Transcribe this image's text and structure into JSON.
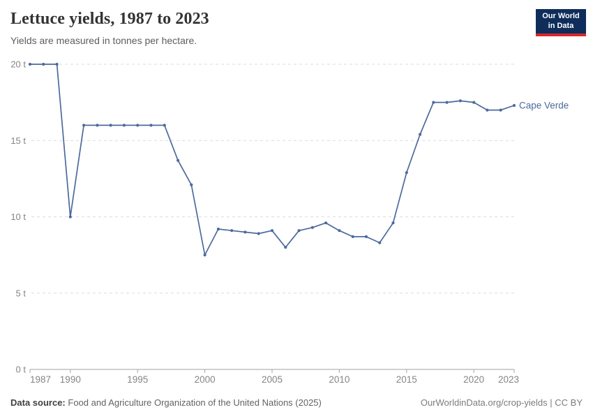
{
  "header": {
    "title": "Lettuce yields, 1987 to 2023",
    "subtitle": "Yields are measured in tonnes per hectare.",
    "logo": {
      "line1": "Our World",
      "line2": "in Data"
    }
  },
  "chart_data": {
    "type": "line",
    "title": "Lettuce yields, 1987 to 2023",
    "ylabel": "tonnes per hectare",
    "unit": "t",
    "xlim": [
      1987,
      2023
    ],
    "ylim": [
      0,
      20
    ],
    "yticks": [
      0,
      5,
      10,
      15,
      20
    ],
    "xticks": [
      1987,
      1990,
      1995,
      2000,
      2005,
      2010,
      2015,
      2020,
      2023
    ],
    "grid": "horizontal-dashed",
    "legend_position": "end-of-line-label",
    "x": [
      1987,
      1988,
      1989,
      1990,
      1991,
      1992,
      1993,
      1994,
      1995,
      1996,
      1997,
      1998,
      1999,
      2000,
      2001,
      2002,
      2003,
      2004,
      2005,
      2006,
      2007,
      2008,
      2009,
      2010,
      2011,
      2012,
      2013,
      2014,
      2015,
      2016,
      2017,
      2018,
      2019,
      2020,
      2021,
      2022,
      2023
    ],
    "series": [
      {
        "name": "Cape Verde",
        "color": "#4c6a9c",
        "values": [
          20,
          20,
          20,
          10,
          16,
          16,
          16,
          16,
          16,
          16,
          16,
          13.7,
          12.1,
          7.5,
          9.2,
          9.1,
          9.0,
          8.9,
          9.1,
          8.0,
          9.1,
          9.3,
          9.6,
          9.1,
          8.7,
          8.7,
          8.3,
          9.6,
          12.9,
          15.4,
          17.5,
          17.5,
          17.6,
          17.5,
          17.0,
          17.0,
          17.3
        ]
      }
    ]
  },
  "footer": {
    "source_label": "Data source:",
    "source_text": "Food and Agriculture Organization of the United Nations (2025)",
    "credit": "OurWorldinData.org/crop-yields | CC BY"
  },
  "colors": {
    "accent": "#4c6a9c",
    "logo_bg": "#0e2d5a",
    "logo_stripe": "#d7282d",
    "gridline": "#dcdcdc",
    "axis": "#a3a3a3",
    "tick_label": "#858585"
  }
}
